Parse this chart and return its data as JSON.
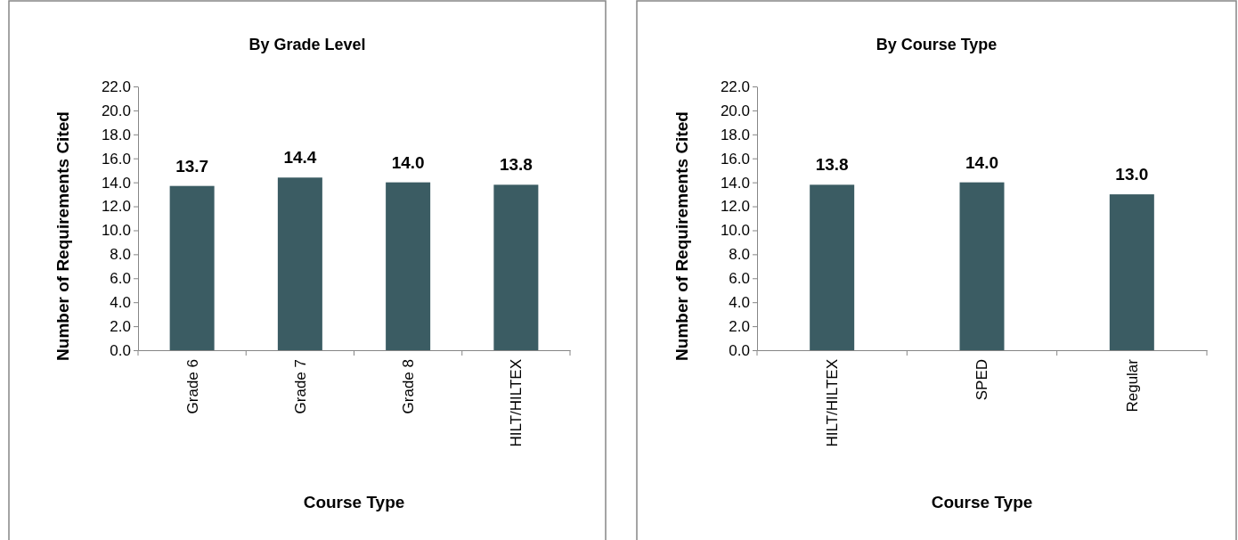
{
  "chart_data": [
    {
      "type": "bar",
      "title": "By Grade Level",
      "xlabel": "Course Type",
      "ylabel": "Number of Requirements Cited",
      "categories": [
        "Grade 6",
        "Grade 7",
        "Grade 8",
        "HILT/HILTEX"
      ],
      "series": [
        {
          "color": "#3b5c63",
          "values": [
            13.7,
            14.4,
            14.0,
            13.8
          ],
          "value_labels": [
            "13.7",
            "14.4",
            "14.0",
            "13.8"
          ]
        }
      ],
      "ylim": [
        0,
        22
      ],
      "yticks": [
        {
          "value": 0,
          "label": "0.0"
        },
        {
          "value": 2,
          "label": "2.0"
        },
        {
          "value": 4,
          "label": "4.0"
        },
        {
          "value": 6,
          "label": "6.0"
        },
        {
          "value": 8,
          "label": "8.0"
        },
        {
          "value": 10,
          "label": "10.0"
        },
        {
          "value": 12,
          "label": "12.0"
        },
        {
          "value": 14,
          "label": "14.0"
        },
        {
          "value": 16,
          "label": "16.0"
        },
        {
          "value": 18,
          "label": "18.0"
        },
        {
          "value": 20,
          "label": "20.0"
        },
        {
          "value": 22,
          "label": "22.0"
        }
      ],
      "grid": false
    },
    {
      "type": "bar",
      "title": "By Course Type",
      "xlabel": "Course Type",
      "ylabel": "Number of Requirements Cited",
      "categories": [
        "HILT/HILTEX",
        "SPED",
        "Regular"
      ],
      "series": [
        {
          "color": "#3b5c63",
          "values": [
            13.8,
            14.0,
            13.0
          ],
          "value_labels": [
            "13.8",
            "14.0",
            "13.0"
          ]
        }
      ],
      "ylim": [
        0,
        22
      ],
      "yticks": [
        {
          "value": 0,
          "label": "0.0"
        },
        {
          "value": 2,
          "label": "2.0"
        },
        {
          "value": 4,
          "label": "4.0"
        },
        {
          "value": 6,
          "label": "6.0"
        },
        {
          "value": 8,
          "label": "8.0"
        },
        {
          "value": 10,
          "label": "10.0"
        },
        {
          "value": 12,
          "label": "12.0"
        },
        {
          "value": 14,
          "label": "14.0"
        },
        {
          "value": 16,
          "label": "16.0"
        },
        {
          "value": 18,
          "label": "18.0"
        },
        {
          "value": 20,
          "label": "20.0"
        },
        {
          "value": 22,
          "label": "22.0"
        }
      ],
      "grid": false
    }
  ]
}
